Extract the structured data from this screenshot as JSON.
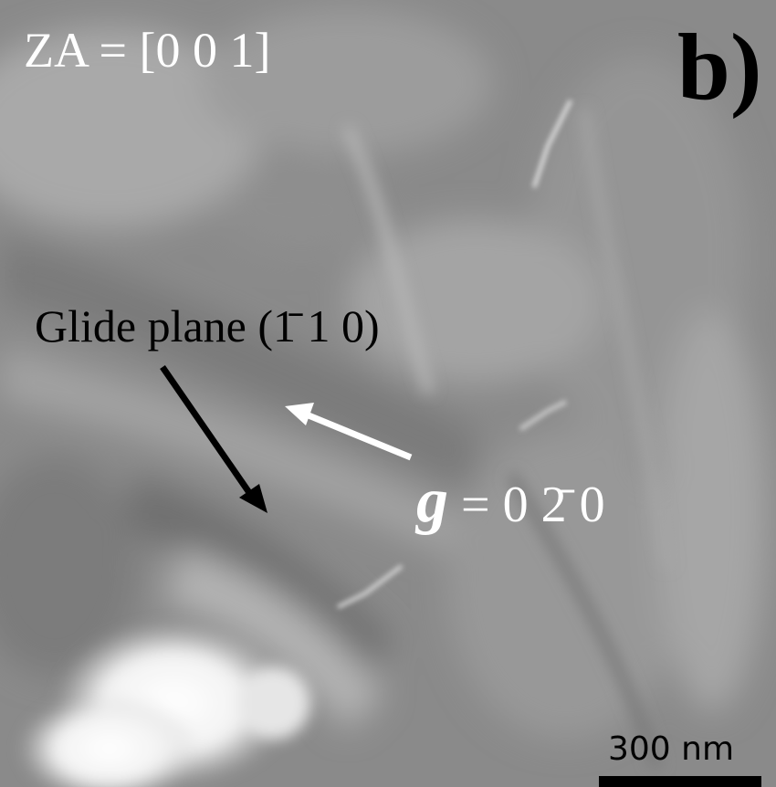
{
  "labels": {
    "zone_axis": "ZA = [0 0 1]",
    "panel_letter": "b)",
    "glide_plane": "Glide plane (1̄ 1 0)",
    "g_symbol": "g",
    "g_value": " = 0 2̄ 0",
    "scale_bar": "300 nm"
  },
  "colors": {
    "arrow_black": "#000000",
    "arrow_white": "#ffffff"
  }
}
